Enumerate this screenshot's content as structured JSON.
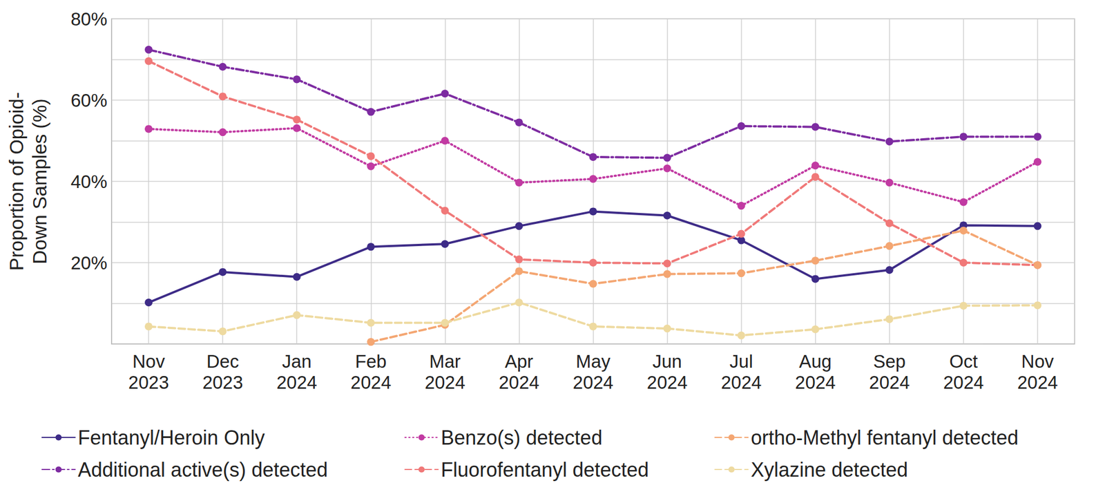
{
  "chart_data": {
    "type": "line",
    "y_label": "Proportion of Opioid-\nDown Samples (%)",
    "categories": [
      "Nov\n2023",
      "Dec\n2023",
      "Jan\n2024",
      "Feb\n2024",
      "Mar\n2024",
      "Apr\n2024",
      "May\n2024",
      "Jun\n2024",
      "Jul\n2024",
      "Aug\n2024",
      "Sep\n2024",
      "Oct\n2024",
      "Nov\n2024"
    ],
    "ylim": [
      0,
      80
    ],
    "yticks": [
      {
        "value": 20,
        "label": "20%"
      },
      {
        "value": 40,
        "label": "40%"
      },
      {
        "value": 60,
        "label": "60%"
      },
      {
        "value": 80,
        "label": "80%"
      }
    ],
    "grid": true,
    "legend": "bottom",
    "marker": "circle",
    "series": [
      {
        "name": "Fentanyl/Heroin Only",
        "color": "#3d2b87",
        "line_style": "solid",
        "values": [
          10.2,
          17.7,
          16.5,
          23.9,
          24.6,
          29.0,
          32.6,
          31.6,
          25.5,
          16.0,
          18.2,
          29.2,
          29.0
        ]
      },
      {
        "name": "Additional active(s) detected",
        "color": "#7d2ba1",
        "line_style": "dashdot",
        "values": [
          72.4,
          68.2,
          65.1,
          57.1,
          61.6,
          54.5,
          46.0,
          45.8,
          53.6,
          53.4,
          49.8,
          51.0,
          51.0
        ]
      },
      {
        "name": "Benzo(s) detected",
        "color": "#c13aa2",
        "line_style": "dotted",
        "values": [
          52.9,
          52.1,
          53.1,
          43.7,
          50.0,
          39.7,
          40.6,
          43.2,
          34.0,
          43.9,
          39.7,
          34.9,
          44.8
        ]
      },
      {
        "name": "Fluorofentanyl detected",
        "color": "#f07878",
        "line_style": "dashed",
        "values": [
          69.6,
          60.9,
          55.2,
          46.2,
          32.8,
          20.8,
          20.0,
          19.8,
          27.1,
          41.1,
          29.7,
          20.0,
          19.4
        ]
      },
      {
        "name": "ortho-Methyl fentanyl detected",
        "color": "#f4a672",
        "line_style": "dashed",
        "values": [
          null,
          null,
          null,
          0.5,
          4.7,
          17.9,
          14.8,
          17.2,
          17.4,
          20.5,
          24.1,
          27.9,
          19.4
        ]
      },
      {
        "name": "Xylazine detected",
        "color": "#eedaa0",
        "line_style": "dashed",
        "values": [
          4.3,
          3.1,
          7.1,
          5.2,
          5.2,
          10.2,
          4.3,
          3.8,
          2.1,
          3.6,
          6.1,
          9.4,
          9.5
        ]
      }
    ]
  }
}
